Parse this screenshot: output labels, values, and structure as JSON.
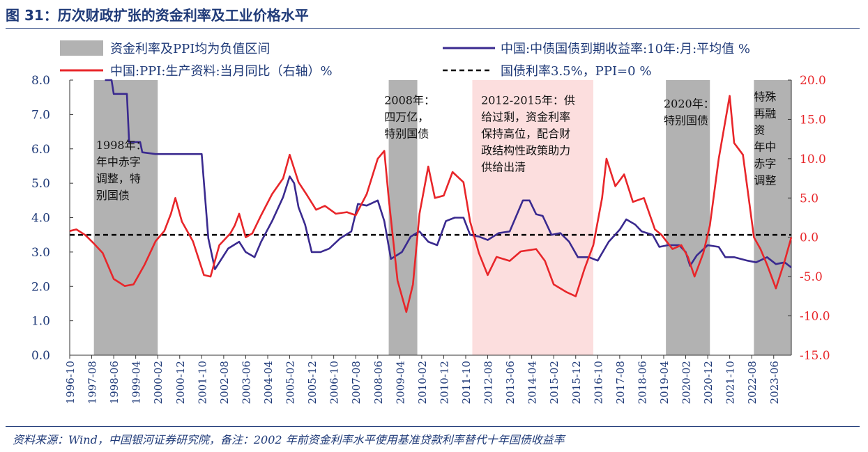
{
  "figure": {
    "title": "图 31：历次财政扩张的资金利率及工业价格水平",
    "source": "资料来源：Wind，中国银河证券研究院，备注：2002 年前资金利率水平使用基准贷款利率替代十年国债收益率"
  },
  "colors": {
    "red": "#e8262a",
    "blue": "#3a2a8f",
    "gray": "#b2b2b2",
    "pink": "#fcdede",
    "left_axis": "#1f3a78",
    "right_axis": "#e8262a"
  },
  "chart_data": {
    "type": "line",
    "legend": {
      "shade_gray": "资金利率及PPI均为负值区间",
      "bond": "中国:中债国债到期收益率:10年:月:平均值 %",
      "ppi": "中国:PPI:生产资料:当月同比（右轴）%",
      "ref": "国债利率3.5%，PPI=0 %"
    },
    "x_ticks": [
      "1996-10",
      "1997-08",
      "1998-06",
      "1999-04",
      "2000-02",
      "2000-12",
      "2001-10",
      "2002-08",
      "2003-06",
      "2004-04",
      "2005-02",
      "2005-12",
      "2006-10",
      "2007-08",
      "2008-06",
      "2009-04",
      "2010-02",
      "2010-12",
      "2011-10",
      "2012-08",
      "2013-06",
      "2014-04",
      "2015-02",
      "2015-12",
      "2016-10",
      "2017-08",
      "2018-06",
      "2019-04",
      "2020-02",
      "2020-12",
      "2021-10",
      "2022-08",
      "2023-06"
    ],
    "x_range": [
      "1996-10",
      "2024-02"
    ],
    "y_left": {
      "min": 0,
      "max": 8,
      "ticks": [
        "0.0",
        "1.0",
        "2.0",
        "3.0",
        "4.0",
        "5.0",
        "6.0",
        "7.0",
        "8.0"
      ]
    },
    "y_right": {
      "min": -15,
      "max": 20,
      "ticks": [
        "-15.0",
        "-10.0",
        "-5.0",
        "0.0",
        "5.0",
        "10.0",
        "15.0",
        "20.0"
      ]
    },
    "reference": {
      "left": 3.5,
      "right": 0
    },
    "shaded_regions": [
      {
        "kind": "gray",
        "start": "1997-09",
        "end": "2000-02"
      },
      {
        "kind": "gray",
        "start": "2008-11",
        "end": "2009-12"
      },
      {
        "kind": "pink",
        "start": "2012-01",
        "end": "2016-08"
      },
      {
        "kind": "gray",
        "start": "2019-05",
        "end": "2021-01"
      },
      {
        "kind": "gray",
        "start": "2022-09",
        "end": "2024-02"
      }
    ],
    "annotations": [
      {
        "lines": [
          "1998年：",
          "年中赤字",
          "调整，特",
          "别国债"
        ],
        "date": "1997-10",
        "y": 6.0
      },
      {
        "lines": [
          "2008年：",
          "四万亿，",
          "特别国债"
        ],
        "date": "2008-09",
        "y": 7.3
      },
      {
        "lines": [
          "2012-2015年：供",
          "给过剩，资金利率",
          "保持高位，配合财",
          "政结构性政策助力",
          "供给出清"
        ],
        "date": "2012-05",
        "y": 7.3
      },
      {
        "lines": [
          "2020年：",
          "特别国债"
        ],
        "date": "2019-04",
        "y": 7.2
      },
      {
        "lines": [
          "特殊",
          "再融",
          "资",
          "年中",
          "赤字",
          "调整"
        ],
        "date": "2022-09",
        "y": 7.4
      }
    ],
    "series": [
      {
        "name": "中国:中债国债到期收益率:10年:月:平均值 %",
        "axis": "left",
        "points": [
          [
            "1998-02",
            8.0
          ],
          [
            "1998-05",
            8.0
          ],
          [
            "1998-06",
            7.6
          ],
          [
            "1998-12",
            7.6
          ],
          [
            "1999-01",
            6.2
          ],
          [
            "1999-06",
            6.2
          ],
          [
            "1999-07",
            5.9
          ],
          [
            "2000-01",
            5.85
          ],
          [
            "2001-10",
            5.85
          ],
          [
            "2002-01",
            3.4
          ],
          [
            "2002-04",
            2.5
          ],
          [
            "2002-06",
            2.7
          ],
          [
            "2002-10",
            3.1
          ],
          [
            "2003-03",
            3.3
          ],
          [
            "2003-06",
            3.0
          ],
          [
            "2003-10",
            2.85
          ],
          [
            "2004-01",
            3.3
          ],
          [
            "2004-06",
            3.9
          ],
          [
            "2004-11",
            4.6
          ],
          [
            "2005-02",
            5.2
          ],
          [
            "2005-04",
            5.0
          ],
          [
            "2005-06",
            4.3
          ],
          [
            "2005-09",
            3.8
          ],
          [
            "2005-12",
            3.0
          ],
          [
            "2006-04",
            3.0
          ],
          [
            "2006-08",
            3.1
          ],
          [
            "2007-01",
            3.4
          ],
          [
            "2007-06",
            3.6
          ],
          [
            "2007-09",
            4.4
          ],
          [
            "2008-01",
            4.35
          ],
          [
            "2008-06",
            4.5
          ],
          [
            "2008-09",
            3.9
          ],
          [
            "2008-12",
            2.8
          ],
          [
            "2009-05",
            3.0
          ],
          [
            "2009-09",
            3.45
          ],
          [
            "2010-01",
            3.6
          ],
          [
            "2010-05",
            3.3
          ],
          [
            "2010-09",
            3.2
          ],
          [
            "2011-01",
            3.9
          ],
          [
            "2011-05",
            4.0
          ],
          [
            "2011-09",
            4.0
          ],
          [
            "2011-12",
            3.5
          ],
          [
            "2012-04",
            3.45
          ],
          [
            "2012-08",
            3.35
          ],
          [
            "2013-01",
            3.55
          ],
          [
            "2013-06",
            3.6
          ],
          [
            "2013-10",
            4.2
          ],
          [
            "2013-12",
            4.5
          ],
          [
            "2014-03",
            4.5
          ],
          [
            "2014-06",
            4.1
          ],
          [
            "2014-09",
            4.05
          ],
          [
            "2015-01",
            3.5
          ],
          [
            "2015-05",
            3.55
          ],
          [
            "2015-09",
            3.3
          ],
          [
            "2016-01",
            2.85
          ],
          [
            "2016-06",
            2.85
          ],
          [
            "2016-10",
            2.75
          ],
          [
            "2017-03",
            3.3
          ],
          [
            "2017-08",
            3.65
          ],
          [
            "2017-11",
            3.95
          ],
          [
            "2018-03",
            3.8
          ],
          [
            "2018-06",
            3.6
          ],
          [
            "2018-11",
            3.5
          ],
          [
            "2019-02",
            3.15
          ],
          [
            "2019-06",
            3.2
          ],
          [
            "2019-11",
            3.2
          ],
          [
            "2020-02",
            3.0
          ],
          [
            "2020-04",
            2.6
          ],
          [
            "2020-07",
            2.9
          ],
          [
            "2020-12",
            3.2
          ],
          [
            "2021-05",
            3.15
          ],
          [
            "2021-08",
            2.85
          ],
          [
            "2021-12",
            2.85
          ],
          [
            "2022-06",
            2.75
          ],
          [
            "2022-10",
            2.7
          ],
          [
            "2023-03",
            2.85
          ],
          [
            "2023-07",
            2.65
          ],
          [
            "2023-11",
            2.7
          ],
          [
            "2024-02",
            2.55
          ]
        ]
      },
      {
        "name": "中国:PPI:生产资料:当月同比（右轴）%",
        "axis": "right",
        "points": [
          [
            "1996-10",
            0.8
          ],
          [
            "1997-01",
            1.0
          ],
          [
            "1997-05",
            0.3
          ],
          [
            "1997-09",
            -0.8
          ],
          [
            "1998-01",
            -2.0
          ],
          [
            "1998-06",
            -5.3
          ],
          [
            "1998-11",
            -6.2
          ],
          [
            "1999-03",
            -6.0
          ],
          [
            "1999-08",
            -3.5
          ],
          [
            "2000-01",
            -0.5
          ],
          [
            "2000-05",
            0.8
          ],
          [
            "2000-08",
            3.0
          ],
          [
            "2000-10",
            5.0
          ],
          [
            "2001-01",
            2.0
          ],
          [
            "2001-06",
            -0.5
          ],
          [
            "2001-11",
            -4.8
          ],
          [
            "2002-02",
            -5.0
          ],
          [
            "2002-06",
            -1.0
          ],
          [
            "2002-11",
            0.5
          ],
          [
            "2003-01",
            1.5
          ],
          [
            "2003-03",
            3.0
          ],
          [
            "2003-06",
            0.0
          ],
          [
            "2003-09",
            0.5
          ],
          [
            "2004-01",
            2.8
          ],
          [
            "2004-06",
            5.5
          ],
          [
            "2004-11",
            7.5
          ],
          [
            "2005-02",
            10.5
          ],
          [
            "2005-06",
            7.0
          ],
          [
            "2005-10",
            5.3
          ],
          [
            "2006-02",
            3.5
          ],
          [
            "2006-06",
            4.0
          ],
          [
            "2006-11",
            3.0
          ],
          [
            "2007-04",
            3.2
          ],
          [
            "2007-08",
            2.8
          ],
          [
            "2008-01",
            5.5
          ],
          [
            "2008-06",
            10.0
          ],
          [
            "2008-09",
            11.0
          ],
          [
            "2008-11",
            5.0
          ],
          [
            "2009-03",
            -5.5
          ],
          [
            "2009-07",
            -9.5
          ],
          [
            "2009-10",
            -6.0
          ],
          [
            "2010-01",
            3.0
          ],
          [
            "2010-05",
            9.0
          ],
          [
            "2010-08",
            5.0
          ],
          [
            "2010-12",
            5.3
          ],
          [
            "2011-04",
            8.3
          ],
          [
            "2011-09",
            7.0
          ],
          [
            "2011-12",
            2.0
          ],
          [
            "2012-04",
            -2.0
          ],
          [
            "2012-08",
            -4.8
          ],
          [
            "2012-12",
            -2.5
          ],
          [
            "2013-06",
            -3.0
          ],
          [
            "2013-11",
            -1.8
          ],
          [
            "2014-06",
            -1.5
          ],
          [
            "2014-10",
            -3.0
          ],
          [
            "2015-02",
            -6.0
          ],
          [
            "2015-08",
            -7.0
          ],
          [
            "2015-12",
            -7.5
          ],
          [
            "2016-04",
            -4.0
          ],
          [
            "2016-08",
            -1.0
          ],
          [
            "2016-12",
            5.0
          ],
          [
            "2017-02",
            10.0
          ],
          [
            "2017-06",
            6.5
          ],
          [
            "2017-10",
            8.0
          ],
          [
            "2018-02",
            4.5
          ],
          [
            "2018-07",
            5.0
          ],
          [
            "2018-12",
            1.0
          ],
          [
            "2019-03",
            0.3
          ],
          [
            "2019-08",
            -1.5
          ],
          [
            "2019-12",
            -1.0
          ],
          [
            "2020-03",
            -2.5
          ],
          [
            "2020-06",
            -5.0
          ],
          [
            "2020-10",
            -2.0
          ],
          [
            "2021-01",
            1.5
          ],
          [
            "2021-05",
            10.0
          ],
          [
            "2021-10",
            18.0
          ],
          [
            "2021-12",
            12.0
          ],
          [
            "2022-04",
            10.5
          ],
          [
            "2022-09",
            0.0
          ],
          [
            "2022-12",
            -1.5
          ],
          [
            "2023-03",
            -3.5
          ],
          [
            "2023-07",
            -6.5
          ],
          [
            "2023-11",
            -3.0
          ],
          [
            "2024-02",
            0.0
          ]
        ]
      }
    ]
  }
}
